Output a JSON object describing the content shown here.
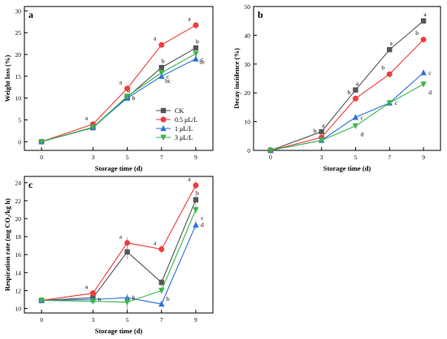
{
  "series_styles": [
    {
      "color": "#555555",
      "marker": "square"
    },
    {
      "color": "#f03c3c",
      "marker": "circle"
    },
    {
      "color": "#2f6fdb",
      "marker": "triangle-up"
    },
    {
      "color": "#39b54a",
      "marker": "triangle-down"
    }
  ],
  "chart_data": [
    {
      "panel": "a",
      "type": "line",
      "x": [
        0,
        3,
        5,
        7,
        9
      ],
      "xlabel": "Storage time (d)",
      "ylabel": "Weight loss (%)",
      "ylim": [
        -2,
        31
      ],
      "yticks": [
        0,
        5,
        10,
        15,
        20,
        25,
        30
      ],
      "legend": "bottom-right",
      "series": [
        {
          "name": "CK",
          "values": [
            0,
            3.2,
            10.2,
            17.0,
            21.5
          ],
          "errors": [
            0,
            0.2,
            0.3,
            0.4,
            0.6
          ],
          "labels": [
            "",
            "",
            "b",
            "b",
            "b"
          ]
        },
        {
          "name": "0.5 μL/L",
          "values": [
            0,
            4.0,
            12.2,
            22.2,
            26.7
          ],
          "errors": [
            0,
            0.3,
            0.4,
            0.5,
            0.8
          ],
          "labels": [
            "",
            "a",
            "a",
            "a",
            "a"
          ]
        },
        {
          "name": "1 μL/L",
          "values": [
            0,
            3.3,
            10.0,
            15.0,
            19.0
          ],
          "errors": [
            0,
            0.2,
            0.3,
            0.4,
            0.6
          ],
          "labels": [
            "",
            "",
            "b",
            "c",
            "c"
          ]
        },
        {
          "name": "3 μL/L",
          "values": [
            0,
            3.3,
            10.4,
            15.8,
            20.2
          ],
          "errors": [
            0,
            0.2,
            0.3,
            0.4,
            0.6
          ],
          "labels": [
            "",
            "",
            "",
            "bc",
            "bc"
          ]
        }
      ]
    },
    {
      "panel": "b",
      "type": "line",
      "x": [
        0,
        3,
        5,
        7,
        9
      ],
      "xlabel": "Storage time (d)",
      "ylabel": "Decay incidence (%)",
      "ylim": [
        0,
        50
      ],
      "yticks": [
        0,
        10,
        20,
        30,
        40,
        50
      ],
      "legend": "none",
      "series": [
        {
          "name": "CK",
          "values": [
            0,
            6.5,
            21.0,
            35.0,
            45.0
          ],
          "errors": [
            0,
            0.5,
            0.8,
            0.8,
            0.8
          ],
          "labels": [
            "",
            "a",
            "a",
            "a",
            "a"
          ]
        },
        {
          "name": "0.5 μL/L",
          "values": [
            0,
            4.5,
            18.0,
            26.5,
            38.5
          ],
          "errors": [
            0,
            0.4,
            0.7,
            0.8,
            0.8
          ],
          "labels": [
            "",
            "b",
            "b",
            "b",
            "b"
          ]
        },
        {
          "name": "1 μL/L",
          "values": [
            0,
            3.5,
            11.5,
            16.5,
            27.0
          ],
          "errors": [
            0,
            0.3,
            0.6,
            0.6,
            0.8
          ],
          "labels": [
            "",
            "",
            "c",
            "c",
            "c"
          ]
        },
        {
          "name": "3 μL/L",
          "values": [
            0,
            3.5,
            8.5,
            16.5,
            23.0
          ],
          "errors": [
            0,
            0.3,
            0.5,
            0.6,
            0.8
          ],
          "labels": [
            "",
            "",
            "d",
            "",
            "d"
          ]
        }
      ]
    },
    {
      "panel": "c",
      "type": "line",
      "x": [
        0,
        3,
        5,
        7,
        9
      ],
      "xlabel": "Storage time (d)",
      "ylabel": "Respiration rate (mg CO₂/kg h)",
      "ylim": [
        9.5,
        24.7
      ],
      "yticks": [
        10,
        12,
        14,
        16,
        18,
        20,
        22,
        24
      ],
      "legend": "none",
      "series": [
        {
          "name": "CK",
          "values": [
            10.9,
            11.2,
            16.3,
            12.9,
            22.1
          ],
          "errors": [
            0.2,
            0.3,
            0.8,
            0.4,
            0.5
          ],
          "labels": [
            "",
            "",
            "",
            "",
            "b"
          ]
        },
        {
          "name": "0.5 μL/L",
          "values": [
            10.9,
            11.7,
            17.3,
            16.6,
            23.7
          ],
          "errors": [
            0.2,
            0.3,
            0.6,
            0.5,
            0.5
          ],
          "labels": [
            "",
            "a",
            "a",
            "a",
            "a"
          ]
        },
        {
          "name": "1 μL/L",
          "values": [
            10.9,
            11.0,
            11.2,
            10.5,
            19.3
          ],
          "errors": [
            0.2,
            0.3,
            0.4,
            0.3,
            0.5
          ],
          "labels": [
            "",
            "b",
            "b",
            "",
            "d"
          ]
        },
        {
          "name": "3 μL/L",
          "values": [
            10.9,
            10.8,
            10.7,
            12.0,
            21.0
          ],
          "errors": [
            0.2,
            0.3,
            0.9,
            0.4,
            0.5
          ],
          "labels": [
            "",
            "",
            "",
            "b",
            "c"
          ]
        }
      ]
    }
  ]
}
